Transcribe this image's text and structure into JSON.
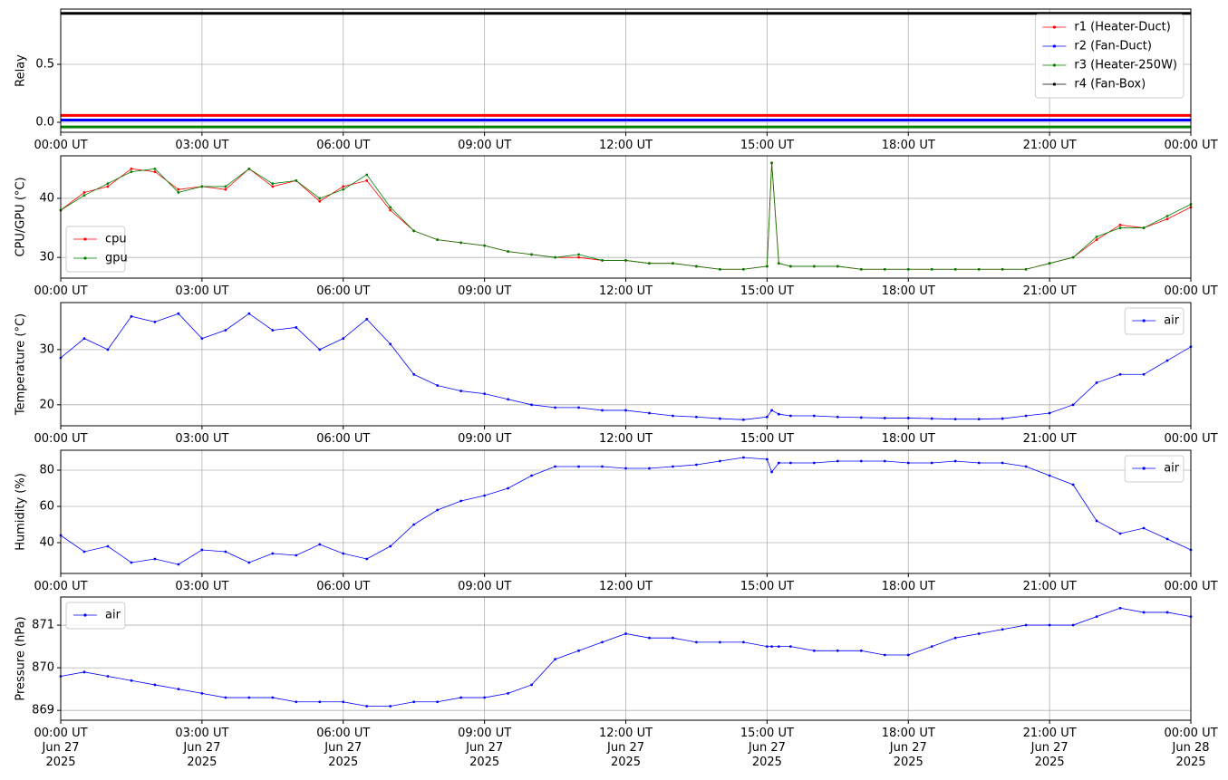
{
  "chart_data": [
    {
      "type": "line",
      "ylabel": "Relay",
      "xlim": [
        0,
        24
      ],
      "ylim": [
        -0.086,
        0.977
      ],
      "xticks": [
        {
          "value": 0,
          "label": "00:00 UT"
        },
        {
          "value": 3,
          "label": "03:00 UT"
        },
        {
          "value": 6,
          "label": "06:00 UT"
        },
        {
          "value": 9,
          "label": "09:00 UT"
        },
        {
          "value": 12,
          "label": "12:00 UT"
        },
        {
          "value": 15,
          "label": "15:00 UT"
        },
        {
          "value": 18,
          "label": "18:00 UT"
        },
        {
          "value": 21,
          "label": "21:00 UT"
        },
        {
          "value": 24,
          "label": "00:00 UT"
        }
      ],
      "yticks": [
        {
          "value": 0,
          "label": "0.0"
        },
        {
          "value": 0.5,
          "label": "0.5"
        }
      ],
      "grid": true,
      "legend": "upper right",
      "x": [
        0,
        24
      ],
      "series": [
        {
          "name": "r1 (Heater-Duct)",
          "color": "#ff0000",
          "values": [
            0.06,
            0.06
          ]
        },
        {
          "name": "r2 (Fan-Duct)",
          "color": "#0000ff",
          "values": [
            0.02,
            0.02
          ]
        },
        {
          "name": "r3 (Heater-250W)",
          "color": "#008000",
          "values": [
            -0.04,
            -0.04
          ]
        },
        {
          "name": "r4 (Fan-Box)",
          "color": "#000000",
          "values": [
            0.94,
            0.94
          ]
        }
      ]
    },
    {
      "type": "line",
      "ylabel": "CPU/GPU (°C)",
      "xlim": [
        0,
        24
      ],
      "ylim": [
        26.5,
        47.2
      ],
      "xticks": [
        {
          "value": 0,
          "label": "00:00 UT"
        },
        {
          "value": 3,
          "label": "03:00 UT"
        },
        {
          "value": 6,
          "label": "06:00 UT"
        },
        {
          "value": 9,
          "label": "09:00 UT"
        },
        {
          "value": 12,
          "label": "12:00 UT"
        },
        {
          "value": 15,
          "label": "15:00 UT"
        },
        {
          "value": 18,
          "label": "18:00 UT"
        },
        {
          "value": 21,
          "label": "21:00 UT"
        },
        {
          "value": 24,
          "label": "00:00 UT"
        }
      ],
      "yticks": [
        30,
        40
      ],
      "grid": true,
      "legend": "lower left",
      "x": [
        0,
        0.5,
        1,
        1.5,
        2,
        2.5,
        3,
        3.5,
        4,
        4.5,
        5,
        5.5,
        6,
        6.5,
        7,
        7.5,
        8,
        8.5,
        9,
        9.5,
        10,
        10.5,
        11,
        11.5,
        12,
        12.5,
        13,
        13.5,
        14,
        14.5,
        15,
        15.1,
        15.25,
        15.5,
        16,
        16.5,
        17,
        17.5,
        18,
        18.5,
        19,
        19.5,
        20,
        20.5,
        21,
        21.5,
        22,
        22.5,
        23,
        23.5,
        24
      ],
      "series": [
        {
          "name": "cpu",
          "color": "#ff0000",
          "values": [
            38,
            41,
            42,
            45,
            44.5,
            41.5,
            42,
            41.5,
            45,
            42,
            43,
            39.5,
            42,
            43,
            38,
            34.5,
            33,
            32.5,
            32,
            31,
            30.5,
            30,
            30,
            29.5,
            29.5,
            29,
            29,
            28.5,
            28,
            28,
            28.5,
            46,
            29,
            28.5,
            28.5,
            28.5,
            28,
            28,
            28,
            28,
            28,
            28,
            28,
            28,
            29,
            30,
            33,
            35.5,
            35,
            36.5,
            38.5
          ]
        },
        {
          "name": "gpu",
          "color": "#008000",
          "values": [
            38,
            40.5,
            42.5,
            44.5,
            45,
            41,
            42,
            42,
            45,
            42.5,
            43,
            40,
            41.5,
            44,
            38.5,
            34.5,
            33,
            32.5,
            32,
            31,
            30.5,
            30,
            30.5,
            29.5,
            29.5,
            29,
            29,
            28.5,
            28,
            28,
            28.5,
            46,
            29,
            28.5,
            28.5,
            28.5,
            28,
            28,
            28,
            28,
            28,
            28,
            28,
            28,
            29,
            30,
            33.5,
            35,
            35,
            37,
            39
          ]
        }
      ]
    },
    {
      "type": "line",
      "ylabel": "Temperature (°C)",
      "xlim": [
        0,
        24
      ],
      "ylim": [
        16.2,
        38.5
      ],
      "xticks": [
        {
          "value": 0,
          "label": "00:00 UT"
        },
        {
          "value": 3,
          "label": "03:00 UT"
        },
        {
          "value": 6,
          "label": "06:00 UT"
        },
        {
          "value": 9,
          "label": "09:00 UT"
        },
        {
          "value": 12,
          "label": "12:00 UT"
        },
        {
          "value": 15,
          "label": "15:00 UT"
        },
        {
          "value": 18,
          "label": "18:00 UT"
        },
        {
          "value": 21,
          "label": "21:00 UT"
        },
        {
          "value": 24,
          "label": "00:00 UT"
        }
      ],
      "yticks": [
        20,
        30
      ],
      "grid": true,
      "legend": "upper right",
      "x": [
        0,
        0.5,
        1,
        1.5,
        2,
        2.5,
        3,
        3.5,
        4,
        4.5,
        5,
        5.5,
        6,
        6.5,
        7,
        7.5,
        8,
        8.5,
        9,
        9.5,
        10,
        10.5,
        11,
        11.5,
        12,
        12.5,
        13,
        13.5,
        14,
        14.5,
        15,
        15.1,
        15.25,
        15.5,
        16,
        16.5,
        17,
        17.5,
        18,
        18.5,
        19,
        19.5,
        20,
        20.5,
        21,
        21.5,
        22,
        22.5,
        23,
        23.5,
        24
      ],
      "series": [
        {
          "name": "air",
          "color": "#0000ff",
          "values": [
            28.5,
            32,
            30,
            36,
            35,
            36.5,
            32,
            33.5,
            36.5,
            33.5,
            34,
            30,
            32,
            35.5,
            31,
            25.5,
            23.5,
            22.5,
            22,
            21,
            20,
            19.5,
            19.5,
            19,
            19,
            18.5,
            18,
            17.8,
            17.5,
            17.3,
            17.8,
            19,
            18.3,
            18,
            18,
            17.8,
            17.7,
            17.6,
            17.6,
            17.5,
            17.4,
            17.4,
            17.5,
            18,
            18.5,
            20,
            24,
            25.5,
            25.5,
            28,
            30.5
          ]
        }
      ]
    },
    {
      "type": "line",
      "ylabel": "Humidity (%)",
      "xlim": [
        0,
        24
      ],
      "ylim": [
        23,
        91
      ],
      "xticks": [
        {
          "value": 0,
          "label": "00:00 UT"
        },
        {
          "value": 3,
          "label": "03:00 UT"
        },
        {
          "value": 6,
          "label": "06:00 UT"
        },
        {
          "value": 9,
          "label": "09:00 UT"
        },
        {
          "value": 12,
          "label": "12:00 UT"
        },
        {
          "value": 15,
          "label": "15:00 UT"
        },
        {
          "value": 18,
          "label": "18:00 UT"
        },
        {
          "value": 21,
          "label": "21:00 UT"
        },
        {
          "value": 24,
          "label": "00:00 UT"
        }
      ],
      "yticks": [
        40,
        60,
        80
      ],
      "grid": true,
      "legend": "upper right",
      "x": [
        0,
        0.5,
        1,
        1.5,
        2,
        2.5,
        3,
        3.5,
        4,
        4.5,
        5,
        5.5,
        6,
        6.5,
        7,
        7.5,
        8,
        8.5,
        9,
        9.5,
        10,
        10.5,
        11,
        11.5,
        12,
        12.5,
        13,
        13.5,
        14,
        14.5,
        15,
        15.1,
        15.25,
        15.5,
        16,
        16.5,
        17,
        17.5,
        18,
        18.5,
        19,
        19.5,
        20,
        20.5,
        21,
        21.5,
        22,
        22.5,
        23,
        23.5,
        24
      ],
      "series": [
        {
          "name": "air",
          "color": "#0000ff",
          "values": [
            44,
            35,
            38,
            29,
            31,
            28,
            36,
            35,
            29,
            34,
            33,
            39,
            34,
            31,
            38,
            50,
            58,
            63,
            66,
            70,
            77,
            82,
            82,
            82,
            81,
            81,
            82,
            83,
            85,
            87,
            86,
            79,
            84,
            84,
            84,
            85,
            85,
            85,
            84,
            84,
            85,
            84,
            84,
            82,
            77,
            72,
            52,
            45,
            48,
            42,
            36
          ]
        }
      ]
    },
    {
      "type": "line",
      "ylabel": "Pressure (hPa)",
      "xlim": [
        0,
        24
      ],
      "ylim": [
        868.77,
        871.66
      ],
      "xticks": [
        {
          "value": 0,
          "label": "00:00 UT\nJun 27\n2025"
        },
        {
          "value": 3,
          "label": "03:00 UT\nJun 27\n2025"
        },
        {
          "value": 6,
          "label": "06:00 UT\nJun 27\n2025"
        },
        {
          "value": 9,
          "label": "09:00 UT\nJun 27\n2025"
        },
        {
          "value": 12,
          "label": "12:00 UT\nJun 27\n2025"
        },
        {
          "value": 15,
          "label": "15:00 UT\nJun 27\n2025"
        },
        {
          "value": 18,
          "label": "18:00 UT\nJun 27\n2025"
        },
        {
          "value": 21,
          "label": "21:00 UT\nJun 27\n2025"
        },
        {
          "value": 24,
          "label": "00:00 UT\nJun 28\n2025"
        }
      ],
      "yticks": [
        869,
        870,
        871
      ],
      "grid": true,
      "legend": "upper left",
      "x": [
        0,
        0.5,
        1,
        1.5,
        2,
        2.5,
        3,
        3.5,
        4,
        4.5,
        5,
        5.5,
        6,
        6.5,
        7,
        7.5,
        8,
        8.5,
        9,
        9.5,
        10,
        10.5,
        11,
        11.5,
        12,
        12.5,
        13,
        13.5,
        14,
        14.5,
        15,
        15.1,
        15.25,
        15.5,
        16,
        16.5,
        17,
        17.5,
        18,
        18.5,
        19,
        19.5,
        20,
        20.5,
        21,
        21.5,
        22,
        22.5,
        23,
        23.5,
        24
      ],
      "series": [
        {
          "name": "air",
          "color": "#0000ff",
          "values": [
            869.8,
            869.9,
            869.8,
            869.7,
            869.6,
            869.5,
            869.4,
            869.3,
            869.3,
            869.3,
            869.2,
            869.2,
            869.2,
            869.1,
            869.1,
            869.2,
            869.2,
            869.3,
            869.3,
            869.4,
            869.6,
            870.2,
            870.4,
            870.6,
            870.8,
            870.7,
            870.7,
            870.6,
            870.6,
            870.6,
            870.5,
            870.5,
            870.5,
            870.5,
            870.4,
            870.4,
            870.4,
            870.3,
            870.3,
            870.5,
            870.7,
            870.8,
            870.9,
            871.0,
            871.0,
            871.0,
            871.2,
            871.4,
            871.3,
            871.3,
            871.2
          ]
        }
      ]
    }
  ]
}
